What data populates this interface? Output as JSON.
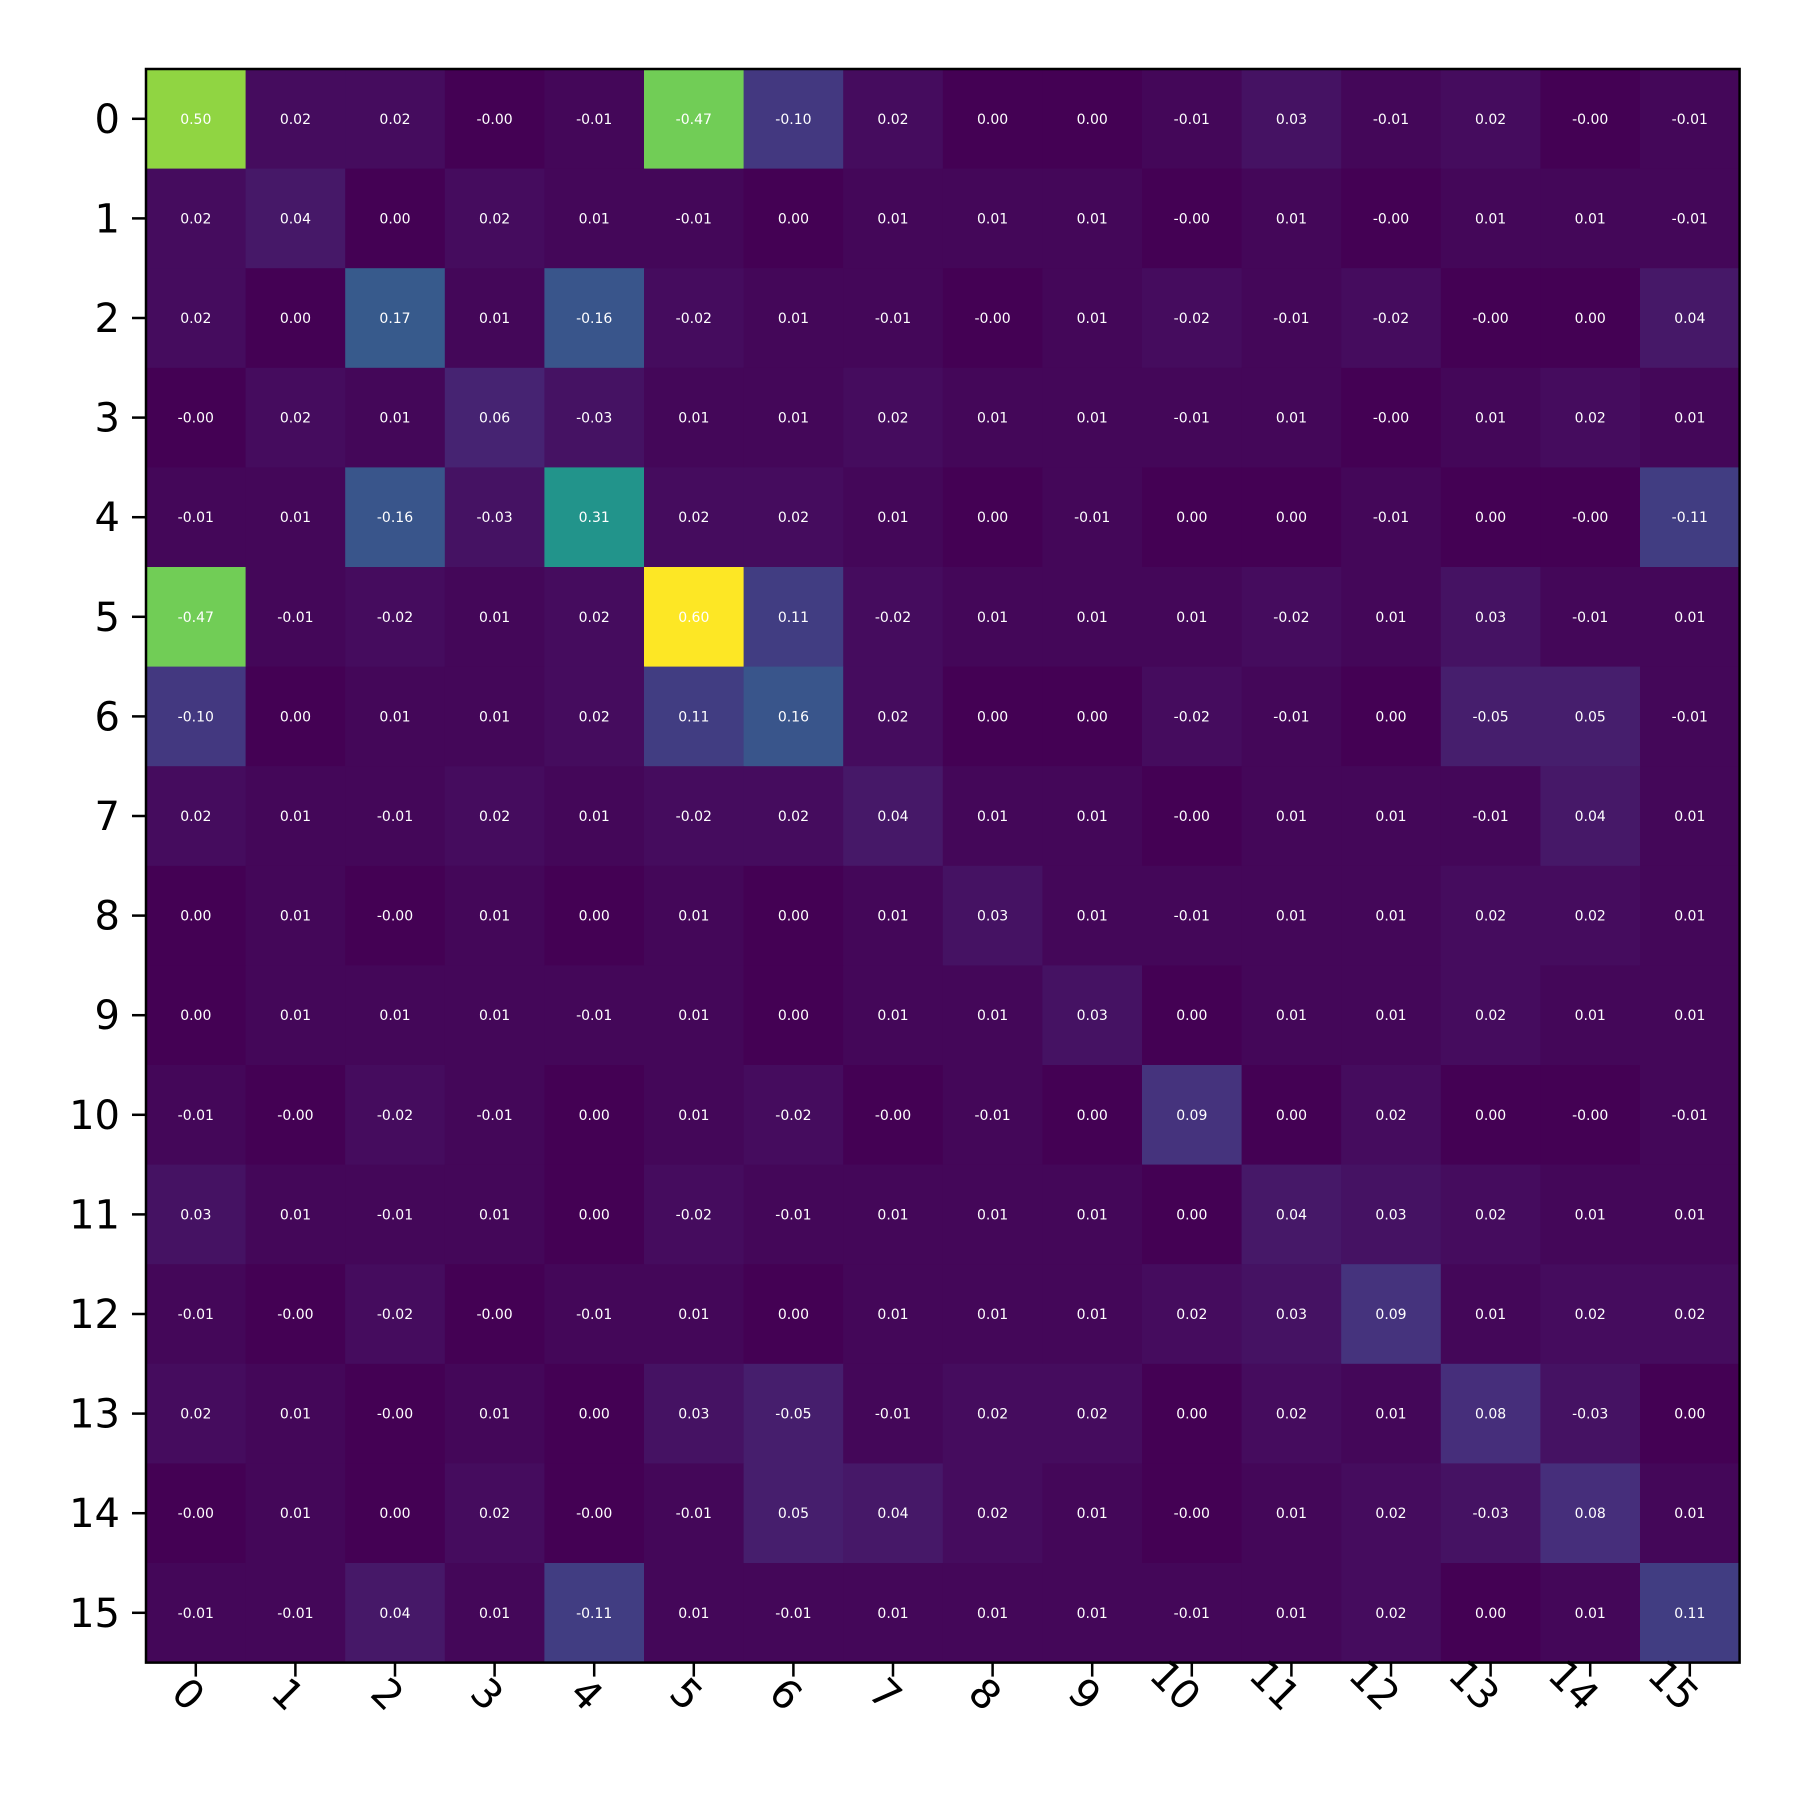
{
  "chart_data": {
    "type": "heatmap",
    "title": "",
    "xlabel": "",
    "ylabel": "",
    "colormap": "viridis",
    "color_range": [
      -0.47,
      0.6
    ],
    "annotation_color": "#ffffff",
    "x_tick_rotation_deg": 45,
    "x_labels": [
      "0",
      "1",
      "2",
      "3",
      "4",
      "5",
      "6",
      "7",
      "8",
      "9",
      "10",
      "11",
      "12",
      "13",
      "14",
      "15"
    ],
    "y_labels": [
      "0",
      "1",
      "2",
      "3",
      "4",
      "5",
      "6",
      "7",
      "8",
      "9",
      "10",
      "11",
      "12",
      "13",
      "14",
      "15"
    ],
    "values": [
      [
        0.5,
        0.02,
        0.02,
        -0.0,
        -0.01,
        -0.47,
        -0.1,
        0.02,
        0.0,
        0.0,
        -0.01,
        0.03,
        -0.01,
        0.02,
        -0.0,
        -0.01
      ],
      [
        0.02,
        0.04,
        0.0,
        0.02,
        0.01,
        -0.01,
        0.0,
        0.01,
        0.01,
        0.01,
        -0.0,
        0.01,
        -0.0,
        0.01,
        0.01,
        -0.01
      ],
      [
        0.02,
        0.0,
        0.17,
        0.01,
        -0.16,
        -0.02,
        0.01,
        -0.01,
        -0.0,
        0.01,
        -0.02,
        -0.01,
        -0.02,
        -0.0,
        0.0,
        0.04
      ],
      [
        -0.0,
        0.02,
        0.01,
        0.06,
        -0.03,
        0.01,
        0.01,
        0.02,
        0.01,
        0.01,
        -0.01,
        0.01,
        -0.0,
        0.01,
        0.02,
        0.01
      ],
      [
        -0.01,
        0.01,
        -0.16,
        -0.03,
        0.31,
        0.02,
        0.02,
        0.01,
        0.0,
        -0.01,
        0.0,
        0.0,
        -0.01,
        0.0,
        -0.0,
        -0.11
      ],
      [
        -0.47,
        -0.01,
        -0.02,
        0.01,
        0.02,
        0.6,
        0.11,
        -0.02,
        0.01,
        0.01,
        0.01,
        -0.02,
        0.01,
        0.03,
        -0.01,
        0.01
      ],
      [
        -0.1,
        0.0,
        0.01,
        0.01,
        0.02,
        0.11,
        0.16,
        0.02,
        0.0,
        0.0,
        -0.02,
        -0.01,
        0.0,
        -0.05,
        0.05,
        -0.01
      ],
      [
        0.02,
        0.01,
        -0.01,
        0.02,
        0.01,
        -0.02,
        0.02,
        0.04,
        0.01,
        0.01,
        -0.0,
        0.01,
        0.01,
        -0.01,
        0.04,
        0.01
      ],
      [
        0.0,
        0.01,
        -0.0,
        0.01,
        0.0,
        0.01,
        0.0,
        0.01,
        0.03,
        0.01,
        -0.01,
        0.01,
        0.01,
        0.02,
        0.02,
        0.01
      ],
      [
        0.0,
        0.01,
        0.01,
        0.01,
        -0.01,
        0.01,
        0.0,
        0.01,
        0.01,
        0.03,
        0.0,
        0.01,
        0.01,
        0.02,
        0.01,
        0.01
      ],
      [
        -0.01,
        -0.0,
        -0.02,
        -0.01,
        0.0,
        0.01,
        -0.02,
        -0.0,
        -0.01,
        0.0,
        0.09,
        0.0,
        0.02,
        0.0,
        -0.0,
        -0.01
      ],
      [
        0.03,
        0.01,
        -0.01,
        0.01,
        0.0,
        -0.02,
        -0.01,
        0.01,
        0.01,
        0.01,
        0.0,
        0.04,
        0.03,
        0.02,
        0.01,
        0.01
      ],
      [
        -0.01,
        -0.0,
        -0.02,
        -0.0,
        -0.01,
        0.01,
        0.0,
        0.01,
        0.01,
        0.01,
        0.02,
        0.03,
        0.09,
        0.01,
        0.02,
        0.02
      ],
      [
        0.02,
        0.01,
        -0.0,
        0.01,
        0.0,
        0.03,
        -0.05,
        -0.01,
        0.02,
        0.02,
        0.0,
        0.02,
        0.01,
        0.08,
        -0.03,
        0.0
      ],
      [
        -0.0,
        0.01,
        0.0,
        0.02,
        -0.0,
        -0.01,
        0.05,
        0.04,
        0.02,
        0.01,
        -0.0,
        0.01,
        0.02,
        -0.03,
        0.08,
        0.01
      ],
      [
        -0.01,
        -0.01,
        0.04,
        0.01,
        -0.11,
        0.01,
        -0.01,
        0.01,
        0.01,
        0.01,
        -0.01,
        0.01,
        0.02,
        0.0,
        0.01,
        0.11
      ]
    ]
  }
}
